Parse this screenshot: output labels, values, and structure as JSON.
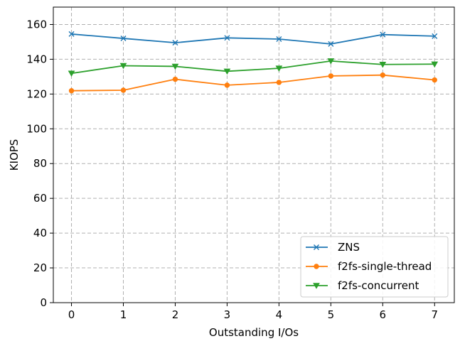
{
  "chart_data": {
    "type": "line",
    "title": "",
    "xlabel": "Outstanding I/Os",
    "ylabel": "KIOPS",
    "x": [
      0,
      1,
      2,
      3,
      4,
      5,
      6,
      7
    ],
    "xlim": [
      -0.35,
      7.38
    ],
    "ylim": [
      0,
      170
    ],
    "xticks": [
      0,
      1,
      2,
      3,
      4,
      5,
      6,
      7
    ],
    "yticks": [
      0,
      20,
      40,
      60,
      80,
      100,
      120,
      140,
      160
    ],
    "grid": true,
    "legend_position": "lower-right",
    "series": [
      {
        "name": "ZNS",
        "color": "#1f77b4",
        "marker": "x",
        "values": [
          154.5,
          152.0,
          149.5,
          152.3,
          151.6,
          148.8,
          154.2,
          153.3
        ]
      },
      {
        "name": "f2fs-single-thread",
        "color": "#ff7f0e",
        "marker": "circle",
        "values": [
          121.9,
          122.2,
          128.5,
          125.1,
          126.7,
          130.4,
          130.9,
          128.1
        ]
      },
      {
        "name": "f2fs-concurrent",
        "color": "#2ca02c",
        "marker": "triangle-down",
        "values": [
          131.9,
          136.3,
          135.9,
          133.1,
          134.8,
          139.0,
          137.0,
          137.2
        ]
      }
    ]
  }
}
